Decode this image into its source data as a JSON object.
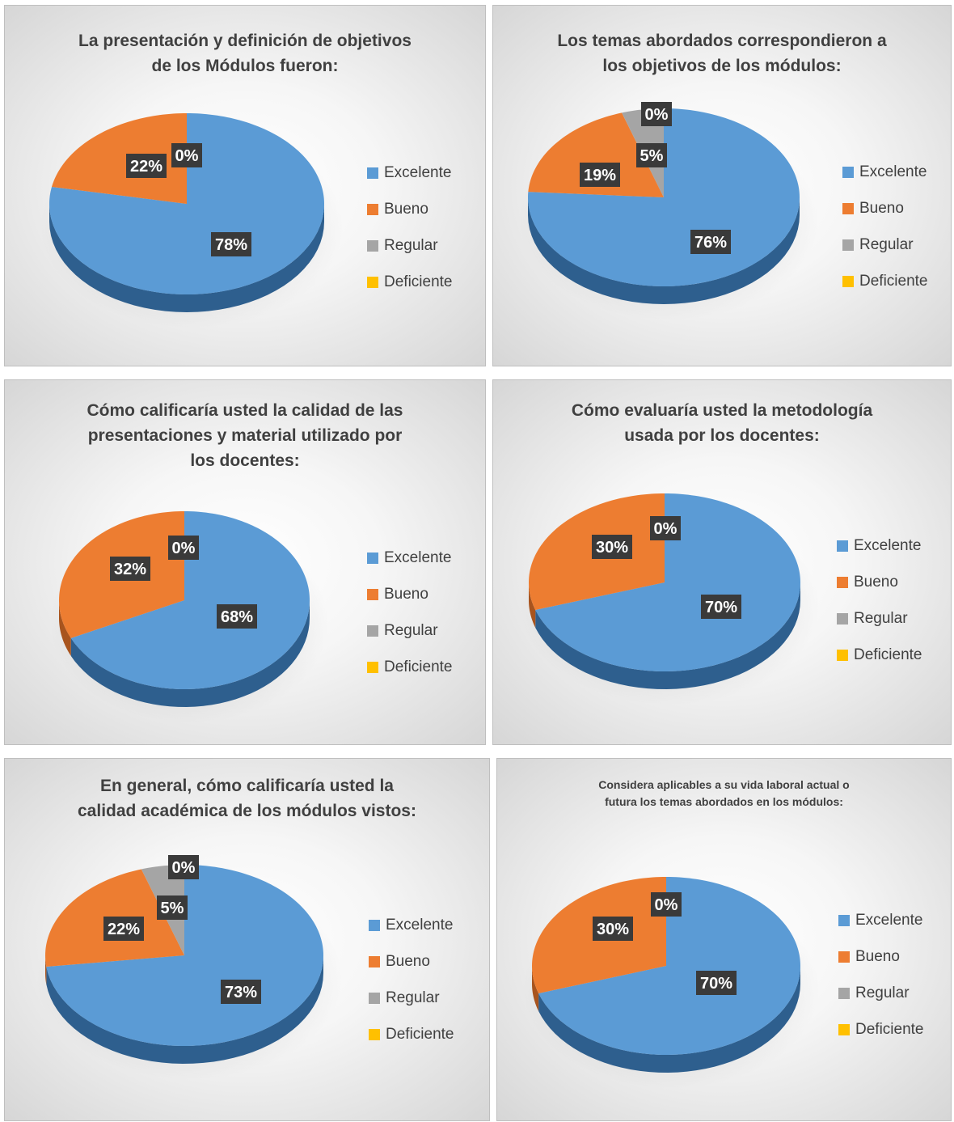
{
  "chart_data": [
    {
      "type": "pie",
      "title": "La presentación y definición de objetivos de los Módulos fueron:",
      "title_lines": [
        "La presentación y definición de objetivos",
        "de los Módulos fueron:"
      ],
      "categories": [
        "Excelente",
        "Bueno",
        "Regular",
        "Deficiente"
      ],
      "values": [
        78,
        22,
        0,
        0
      ],
      "labels": [
        "78%",
        "22%",
        "0%",
        "0%"
      ]
    },
    {
      "type": "pie",
      "title": "Los temas abordados correspondieron a los objetivos de  los módulos:",
      "title_lines": [
        "Los temas abordados correspondieron a",
        "los objetivos de  los módulos:"
      ],
      "categories": [
        "Excelente",
        "Bueno",
        "Regular",
        "Deficiente"
      ],
      "values": [
        76,
        19,
        5,
        0
      ],
      "labels": [
        "76%",
        "19%",
        "5%",
        "0%"
      ]
    },
    {
      "type": "pie",
      "title": "Cómo calificaría usted la calidad de las presentaciones y material utilizado por los docentes:",
      "title_lines": [
        "Cómo calificaría usted la calidad de las",
        "presentaciones y material utilizado por",
        "los docentes:"
      ],
      "categories": [
        "Excelente",
        "Bueno",
        "Regular",
        "Deficiente"
      ],
      "values": [
        68,
        32,
        0,
        0
      ],
      "labels": [
        "68%",
        "32%",
        "0%",
        "0%"
      ]
    },
    {
      "type": "pie",
      "title": "Cómo evaluaría usted la metodología usada por los docentes:",
      "title_lines": [
        "Cómo evaluaría usted la metodología",
        "usada por los docentes:"
      ],
      "categories": [
        "Excelente",
        "Bueno",
        "Regular",
        "Deficiente"
      ],
      "values": [
        70,
        30,
        0,
        0
      ],
      "labels": [
        "70%",
        "30%",
        "0%",
        "0%"
      ]
    },
    {
      "type": "pie",
      "title": "En general, cómo calificaría usted la calidad académica de los módulos vistos:",
      "title_lines": [
        "En general, cómo calificaría usted la",
        "calidad académica de los módulos vistos:"
      ],
      "categories": [
        "Excelente",
        "Bueno",
        "Regular",
        "Deficiente"
      ],
      "values": [
        73,
        22,
        5,
        0
      ],
      "labels": [
        "73%",
        "22%",
        "5%",
        "0%"
      ]
    },
    {
      "type": "pie",
      "title": "Considera aplicables a su vida laboral actual o futura los temas abordados en los módulos:",
      "title_lines": [
        "Considera aplicables a su vida laboral actual o",
        "futura los temas abordados en los módulos:"
      ],
      "categories": [
        "Excelente",
        "Bueno",
        "Regular",
        "Deficiente"
      ],
      "values": [
        70,
        30,
        0,
        0
      ],
      "labels": [
        "70%",
        "30%",
        "0%",
        "0%"
      ]
    }
  ],
  "colors": {
    "Excelente": "#5B9BD5",
    "Bueno": "#ED7D31",
    "Regular": "#A5A5A5",
    "Deficiente": "#FFC000"
  }
}
